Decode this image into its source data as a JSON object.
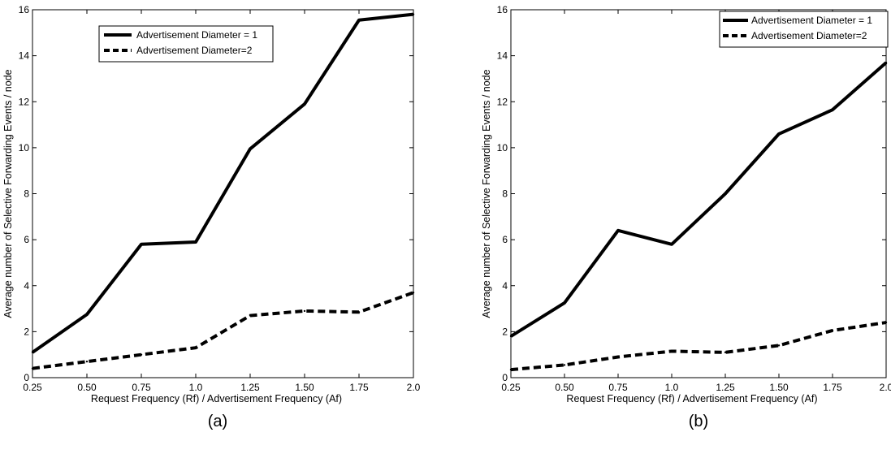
{
  "chart_data": [
    {
      "type": "line",
      "title": "",
      "caption": "(a)",
      "xlabel": "Request Frequency (Rf) / Advertisement Frequency (Af)",
      "ylabel": "Average number of Selective Forwarding Events / node",
      "x_tick_labels": [
        "0.25",
        "0.50",
        "0.75",
        "1.0",
        "1.25",
        "1.50",
        "1.75",
        "2.0"
      ],
      "y_ticks": [
        0,
        2,
        4,
        6,
        8,
        10,
        12,
        14,
        16
      ],
      "ylim": [
        0,
        16
      ],
      "grid": false,
      "legend_position": "top-center",
      "series": [
        {
          "name": "Advertisement Diameter = 1",
          "style": "solid",
          "color": "#000000",
          "values": [
            1.1,
            2.75,
            5.8,
            5.9,
            9.95,
            11.9,
            15.55,
            15.8
          ]
        },
        {
          "name": "Advertisement Diameter=2",
          "style": "dashed",
          "color": "#000000",
          "values": [
            0.4,
            0.7,
            1.0,
            1.3,
            2.7,
            2.9,
            2.85,
            3.7
          ]
        }
      ]
    },
    {
      "type": "line",
      "title": "",
      "caption": "(b)",
      "xlabel": "Request Frequency (Rf) / Advertisement Frequency (Af)",
      "ylabel": "Average number of Selective Forwarding Events / node",
      "x_tick_labels": [
        "0.25",
        "0.50",
        "0.75",
        "1.0",
        "1.25",
        "1.50",
        "1.75",
        "2.0"
      ],
      "y_ticks": [
        0,
        2,
        4,
        6,
        8,
        10,
        12,
        14,
        16
      ],
      "ylim": [
        0,
        16
      ],
      "grid": false,
      "legend_position": "top-right",
      "series": [
        {
          "name": "Advertisement Diameter = 1",
          "style": "solid",
          "color": "#000000",
          "values": [
            1.8,
            3.25,
            6.4,
            5.8,
            8.0,
            10.6,
            11.65,
            13.7
          ]
        },
        {
          "name": "Advertisement Diameter=2",
          "style": "dashed",
          "color": "#000000",
          "values": [
            0.35,
            0.55,
            0.9,
            1.15,
            1.1,
            1.4,
            2.05,
            2.4
          ]
        }
      ]
    }
  ]
}
